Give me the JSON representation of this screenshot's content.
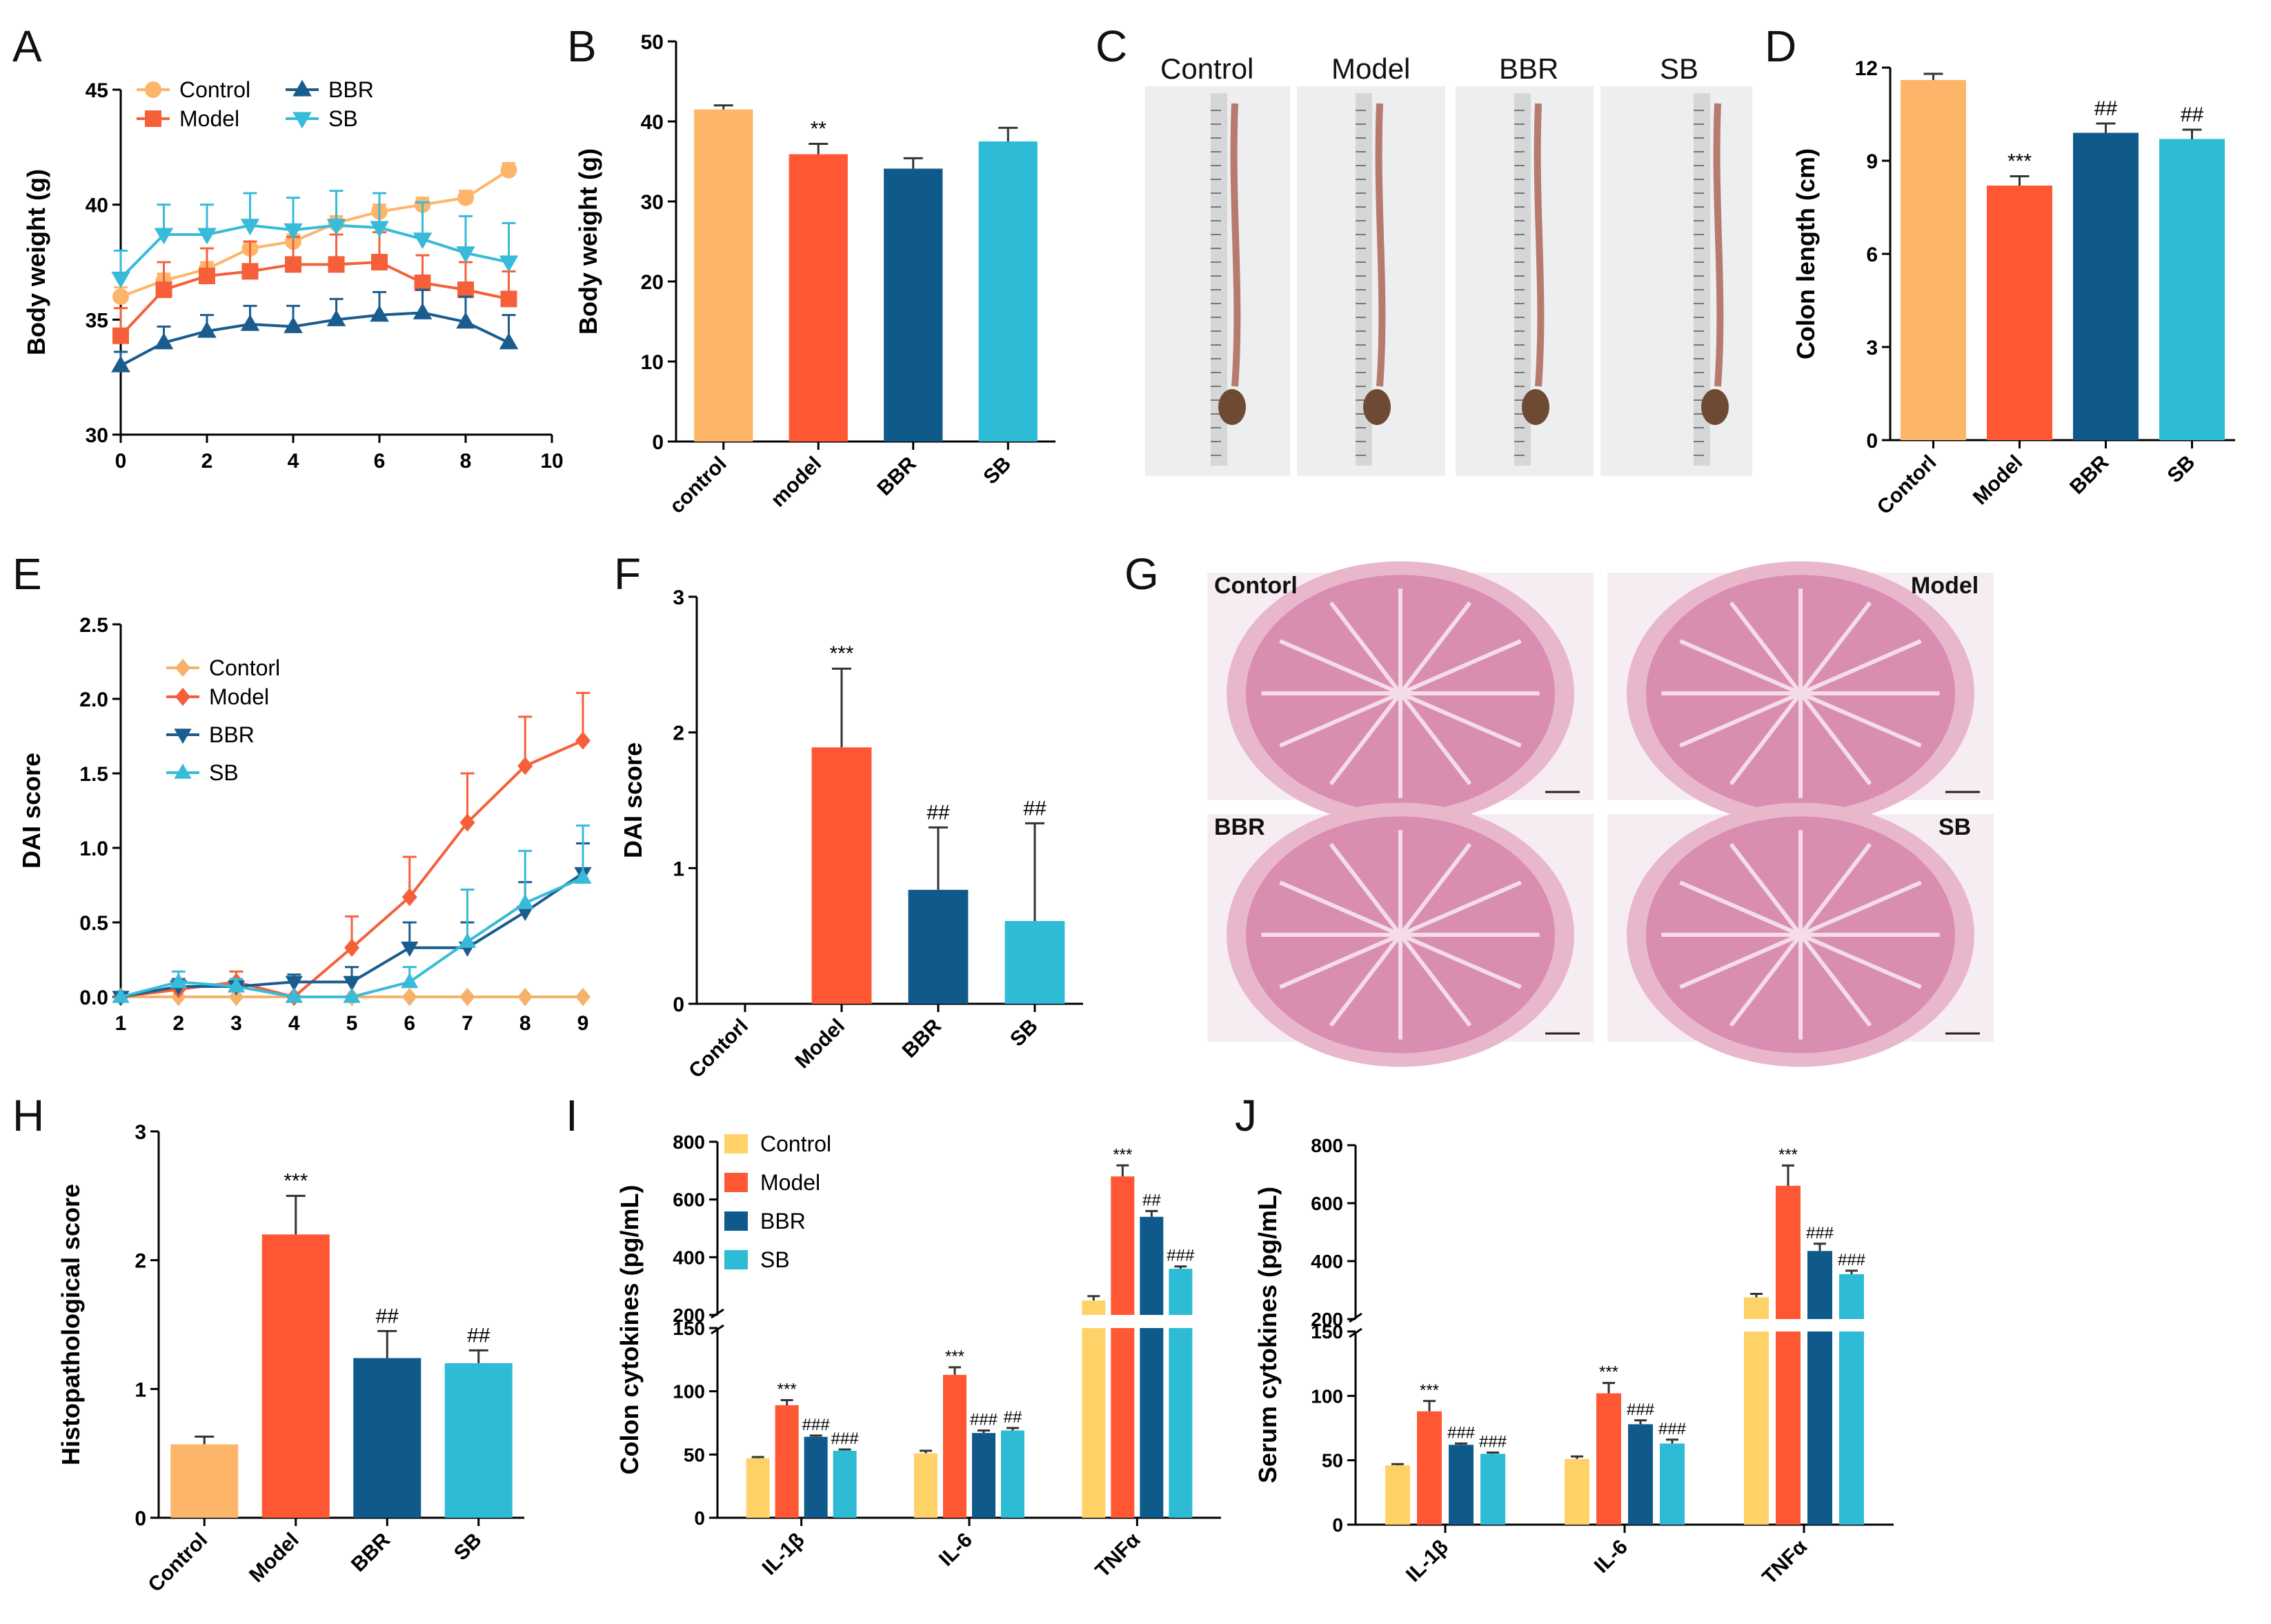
{
  "figure": {
    "colors": {
      "control": "#FDB56A",
      "model": "#FF5733",
      "bbr": "#0F5A8A",
      "sb": "#2DBBD6",
      "control_line": "#FDB56A",
      "model_line": "#F5603A",
      "bbr_line": "#1B5C8E",
      "sb_line": "#38BBD8",
      "contorl_line": "#F6B26B",
      "ylw": "#FFD268"
    },
    "panelC": {
      "letter": "C",
      "labels": [
        "Control",
        "Model",
        "BBR",
        "SB"
      ]
    },
    "panelG": {
      "letter": "G",
      "labels": [
        "Contorl",
        "Model",
        "BBR",
        "SB"
      ]
    }
  },
  "chart_data": [
    {
      "id": "A",
      "letter": "A",
      "type": "line",
      "title": "",
      "xlabel": "",
      "ylabel": "Body weight (g)",
      "xlim": [
        0,
        10
      ],
      "ylim": [
        30,
        45
      ],
      "xticks": [
        "0",
        "2",
        "4",
        "6",
        "8",
        "10"
      ],
      "yticks": [
        "30",
        "35",
        "40",
        "45"
      ],
      "legend_position": "top-left",
      "x": [
        0,
        1,
        2,
        3,
        4,
        5,
        6,
        7,
        8,
        9
      ],
      "series": [
        {
          "name": "Control",
          "marker": "circle",
          "color_key": "control_line",
          "values": [
            36.0,
            36.7,
            37.2,
            38.1,
            38.4,
            39.2,
            39.7,
            40.0,
            40.3,
            41.5
          ],
          "errors": [
            0.4,
            0.3,
            0.3,
            0.3,
            0.3,
            0.3,
            0.3,
            0.3,
            0.3,
            0.3
          ]
        },
        {
          "name": "Model",
          "marker": "square",
          "color_key": "model_line",
          "values": [
            34.3,
            36.3,
            36.9,
            37.1,
            37.4,
            37.4,
            37.5,
            36.6,
            36.3,
            35.9
          ],
          "errors": [
            1.2,
            1.2,
            1.2,
            1.3,
            1.2,
            1.3,
            1.3,
            1.2,
            1.2,
            1.2
          ]
        },
        {
          "name": "BBR",
          "marker": "triangle-up",
          "color_key": "bbr_line",
          "values": [
            33.0,
            34.0,
            34.5,
            34.8,
            34.7,
            35.0,
            35.2,
            35.3,
            34.9,
            34.0
          ],
          "errors": [
            0.6,
            0.7,
            0.7,
            0.8,
            0.9,
            0.9,
            1.0,
            1.0,
            1.1,
            1.2
          ]
        },
        {
          "name": "SB",
          "marker": "triangle-down",
          "color_key": "sb_line",
          "values": [
            36.8,
            38.7,
            38.7,
            39.1,
            38.9,
            39.1,
            39.0,
            38.5,
            37.9,
            37.5
          ],
          "errors": [
            1.2,
            1.3,
            1.3,
            1.4,
            1.4,
            1.5,
            1.5,
            1.6,
            1.6,
            1.7
          ]
        }
      ]
    },
    {
      "id": "B",
      "letter": "B",
      "type": "bar",
      "title": "",
      "xlabel": "",
      "ylabel": "Body weight (g)",
      "ylim": [
        0,
        50
      ],
      "yticks": [
        "0",
        "10",
        "20",
        "30",
        "40",
        "50"
      ],
      "categories": [
        "control",
        "model",
        "BBR",
        "SB"
      ],
      "color_keys": [
        "control",
        "model",
        "bbr",
        "sb"
      ],
      "values": [
        41.5,
        35.9,
        34.1,
        37.5
      ],
      "errors": [
        0.5,
        1.3,
        1.3,
        1.7
      ],
      "annotations": [
        "",
        "**",
        "",
        ""
      ]
    },
    {
      "id": "D",
      "letter": "D",
      "type": "bar",
      "title": "",
      "xlabel": "",
      "ylabel": "Colon length (cm)",
      "ylim": [
        0,
        12
      ],
      "yticks": [
        "0",
        "3",
        "6",
        "9",
        "12"
      ],
      "categories": [
        "Contorl",
        "Model",
        "BBR",
        "SB"
      ],
      "color_keys": [
        "control",
        "model",
        "bbr",
        "sb"
      ],
      "values": [
        11.6,
        8.2,
        9.9,
        9.7
      ],
      "errors": [
        0.2,
        0.3,
        0.3,
        0.3
      ],
      "annotations": [
        "",
        "***",
        "##",
        "##"
      ]
    },
    {
      "id": "E",
      "letter": "E",
      "type": "line",
      "title": "",
      "xlabel": "",
      "ylabel": "DAI score",
      "xlim": [
        1,
        9
      ],
      "ylim": [
        0,
        2.5
      ],
      "xticks": [
        "1",
        "2",
        "3",
        "4",
        "5",
        "6",
        "7",
        "8",
        "9"
      ],
      "yticks": [
        "0.0",
        "0.5",
        "1.0",
        "1.5",
        "2.0",
        "2.5"
      ],
      "legend_position": "top-left",
      "x": [
        1,
        2,
        3,
        4,
        5,
        6,
        7,
        8,
        9
      ],
      "series": [
        {
          "name": "Contorl",
          "marker": "diamond",
          "color_key": "contorl_line",
          "values": [
            0,
            0,
            0,
            0,
            0,
            0,
            0,
            0,
            0
          ],
          "errors": [
            0,
            0,
            0,
            0,
            0,
            0,
            0,
            0,
            0
          ]
        },
        {
          "name": "Model",
          "marker": "diamond",
          "color_key": "model_line",
          "values": [
            0,
            0.05,
            0.1,
            0,
            0.33,
            0.67,
            1.17,
            1.55,
            1.72
          ],
          "errors": [
            0,
            0.05,
            0.07,
            0,
            0.21,
            0.27,
            0.33,
            0.33,
            0.32
          ]
        },
        {
          "name": "BBR",
          "marker": "triangle-down",
          "color_key": "bbr_line",
          "values": [
            0,
            0.07,
            0.07,
            0.1,
            0.1,
            0.33,
            0.33,
            0.57,
            0.83
          ],
          "errors": [
            0,
            0.05,
            0.05,
            0.05,
            0.1,
            0.17,
            0.17,
            0.2,
            0.2
          ]
        },
        {
          "name": "SB",
          "marker": "triangle-up",
          "color_key": "sb_line",
          "values": [
            0,
            0.1,
            0.07,
            0,
            0,
            0.1,
            0.37,
            0.63,
            0.8
          ],
          "errors": [
            0,
            0.07,
            0.05,
            0,
            0,
            0.1,
            0.35,
            0.35,
            0.35
          ]
        }
      ]
    },
    {
      "id": "F",
      "letter": "F",
      "type": "bar",
      "title": "",
      "xlabel": "",
      "ylabel": "DAI score",
      "ylim": [
        0,
        3
      ],
      "yticks": [
        "0",
        "1",
        "2",
        "3"
      ],
      "categories": [
        "Contorl",
        "Model",
        "BBR",
        "SB"
      ],
      "color_keys": [
        "control",
        "model",
        "bbr",
        "sb"
      ],
      "values": [
        0,
        1.89,
        0.84,
        0.61
      ],
      "errors": [
        0,
        0.58,
        0.46,
        0.72
      ],
      "annotations": [
        "",
        "***",
        "##",
        "##"
      ]
    },
    {
      "id": "H",
      "letter": "H",
      "type": "bar",
      "title": "",
      "xlabel": "",
      "ylabel": "Histopathological score",
      "ylim": [
        0,
        3
      ],
      "yticks": [
        "0",
        "1",
        "2",
        "3"
      ],
      "categories": [
        "Control",
        "Model",
        "BBR",
        "SB"
      ],
      "color_keys": [
        "control",
        "model",
        "bbr",
        "sb"
      ],
      "values": [
        0.57,
        2.2,
        1.24,
        1.2
      ],
      "errors": [
        0.06,
        0.3,
        0.21,
        0.1
      ],
      "annotations": [
        "",
        "***",
        "##",
        "##"
      ]
    },
    {
      "id": "I",
      "letter": "I",
      "type": "bar",
      "title": "",
      "xlabel": "",
      "ylabel": "Colon cytokines (pg/mL)",
      "broken_axis": true,
      "lower_ylim": [
        0,
        150
      ],
      "lower_yticks": [
        "0",
        "50",
        "100",
        "150"
      ],
      "upper_ylim": [
        200,
        800
      ],
      "upper_yticks": [
        "200",
        "400",
        "600",
        "800"
      ],
      "legend_position": "top-left",
      "categories": [
        "IL-1β",
        "IL-6",
        "TNFα"
      ],
      "series": [
        {
          "name": "Control",
          "color_key": "ylw",
          "values": [
            47,
            51,
            250
          ],
          "errors": [
            1,
            2,
            15
          ],
          "annotations": [
            "",
            "",
            ""
          ]
        },
        {
          "name": "Model",
          "color_key": "model",
          "values": [
            89,
            113,
            680
          ],
          "errors": [
            4,
            6,
            38
          ],
          "annotations": [
            "***",
            "***",
            "***"
          ]
        },
        {
          "name": "BBR",
          "color_key": "bbr",
          "values": [
            64,
            67,
            540
          ],
          "errors": [
            1,
            2,
            20
          ],
          "annotations": [
            "###",
            "###",
            "##"
          ]
        },
        {
          "name": "SB",
          "color_key": "sb",
          "values": [
            53,
            69,
            360
          ],
          "errors": [
            1,
            2,
            8
          ],
          "annotations": [
            "###",
            "##",
            "###"
          ]
        }
      ]
    },
    {
      "id": "J",
      "letter": "J",
      "type": "bar",
      "title": "",
      "xlabel": "",
      "ylabel": "Serum cytokines (pg/mL)",
      "broken_axis": true,
      "lower_ylim": [
        0,
        150
      ],
      "lower_yticks": [
        "0",
        "50",
        "100",
        "150"
      ],
      "upper_ylim": [
        200,
        800
      ],
      "upper_yticks": [
        "200",
        "400",
        "600",
        "800"
      ],
      "categories": [
        "IL-1β",
        "IL-6",
        "TNFα"
      ],
      "series": [
        {
          "name": "Control",
          "color_key": "ylw",
          "values": [
            46,
            51,
            275
          ],
          "errors": [
            1,
            2,
            12
          ],
          "annotations": [
            "",
            "",
            ""
          ]
        },
        {
          "name": "Model",
          "color_key": "model",
          "values": [
            88,
            102,
            660
          ],
          "errors": [
            8,
            8,
            70
          ],
          "annotations": [
            "***",
            "***",
            "***"
          ]
        },
        {
          "name": "BBR",
          "color_key": "bbr",
          "values": [
            62,
            78,
            435
          ],
          "errors": [
            1,
            3,
            25
          ],
          "annotations": [
            "###",
            "###",
            "###"
          ]
        },
        {
          "name": "SB",
          "color_key": "sb",
          "values": [
            55,
            63,
            355
          ],
          "errors": [
            1,
            3,
            12
          ],
          "annotations": [
            "###",
            "###",
            "###"
          ]
        }
      ]
    }
  ]
}
